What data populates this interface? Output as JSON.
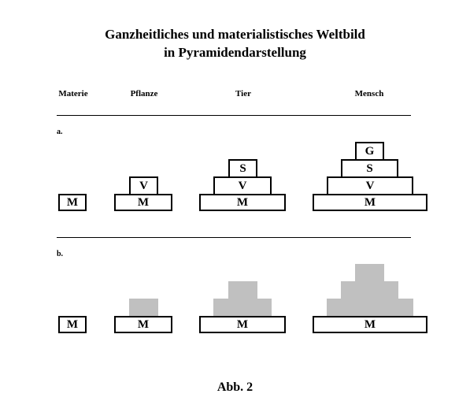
{
  "title": {
    "line1": "Ganzheitliches und materialistisches Weltbild",
    "line2": "in Pyramidendarstellung"
  },
  "columns": [
    "Materie",
    "Pflanze",
    "Tier",
    "Mensch"
  ],
  "sections": {
    "a": {
      "label": "a.",
      "pyramids": [
        [
          "M"
        ],
        [
          "M",
          "V"
        ],
        [
          "M",
          "V",
          "S"
        ],
        [
          "M",
          "V",
          "S",
          "G"
        ]
      ]
    },
    "b": {
      "label": "b.",
      "pyramids": [
        [
          "M"
        ],
        [
          "M"
        ],
        [
          "M"
        ],
        [
          "M"
        ]
      ]
    }
  },
  "gray_fill": "#c0c0c0",
  "caption": "Abb. 2"
}
